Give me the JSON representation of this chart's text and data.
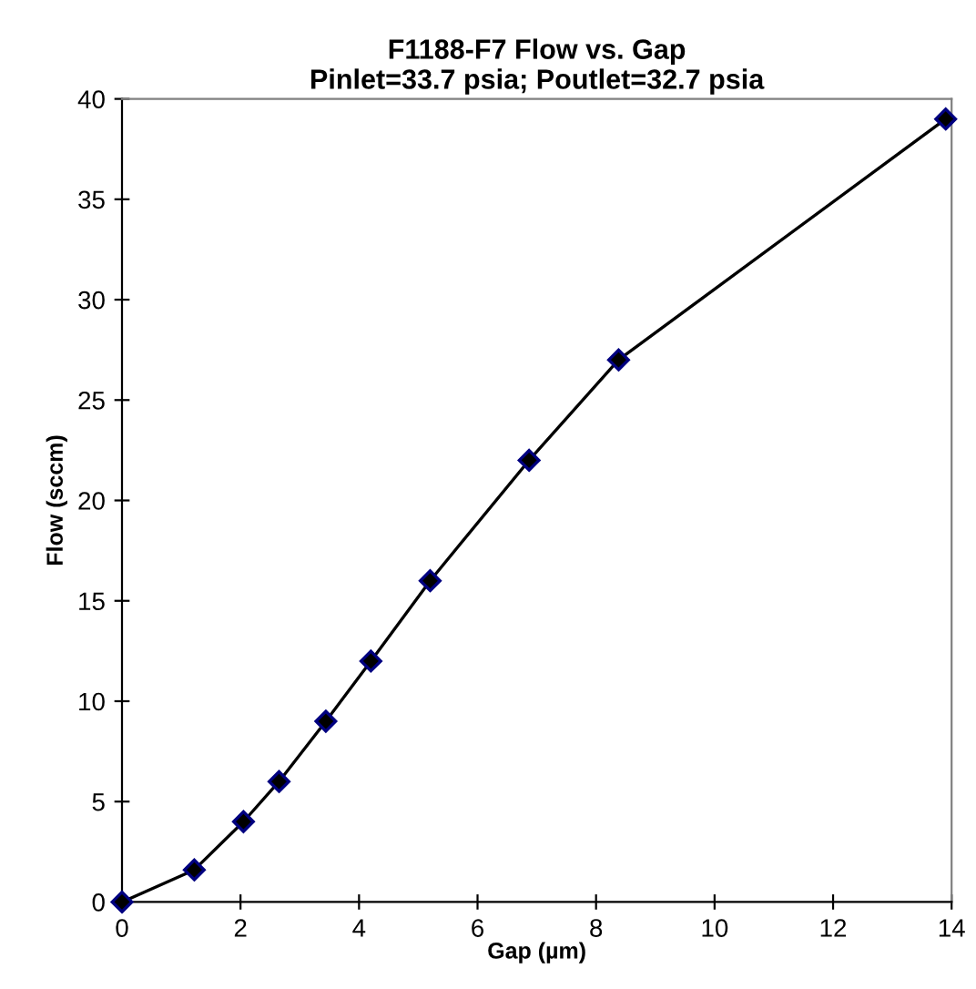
{
  "chart_data": {
    "type": "line",
    "title": "F1188-F7 Flow vs. Gap\nPinlet=33.7 psia; Poutlet=32.7 psia",
    "xlabel": "Gap (µm)",
    "ylabel": "Flow (sccm)",
    "x": [
      0,
      1.22,
      2.05,
      2.65,
      3.44,
      4.2,
      5.2,
      6.87,
      8.38,
      13.9
    ],
    "series": [
      {
        "color": "#000080",
        "values": [
          0,
          1.6,
          4,
          6,
          9,
          12,
          16,
          22,
          27,
          39
        ]
      }
    ],
    "xlim": [
      0,
      14
    ],
    "xticks": [
      0,
      2,
      4,
      6,
      8,
      10,
      12,
      14
    ],
    "ylim": [
      0,
      40
    ],
    "yticks": [
      0,
      5,
      10,
      15,
      20,
      25,
      30,
      35,
      40
    ],
    "marker": "diamond",
    "line_style": "solid",
    "grid": false,
    "legend": false
  }
}
